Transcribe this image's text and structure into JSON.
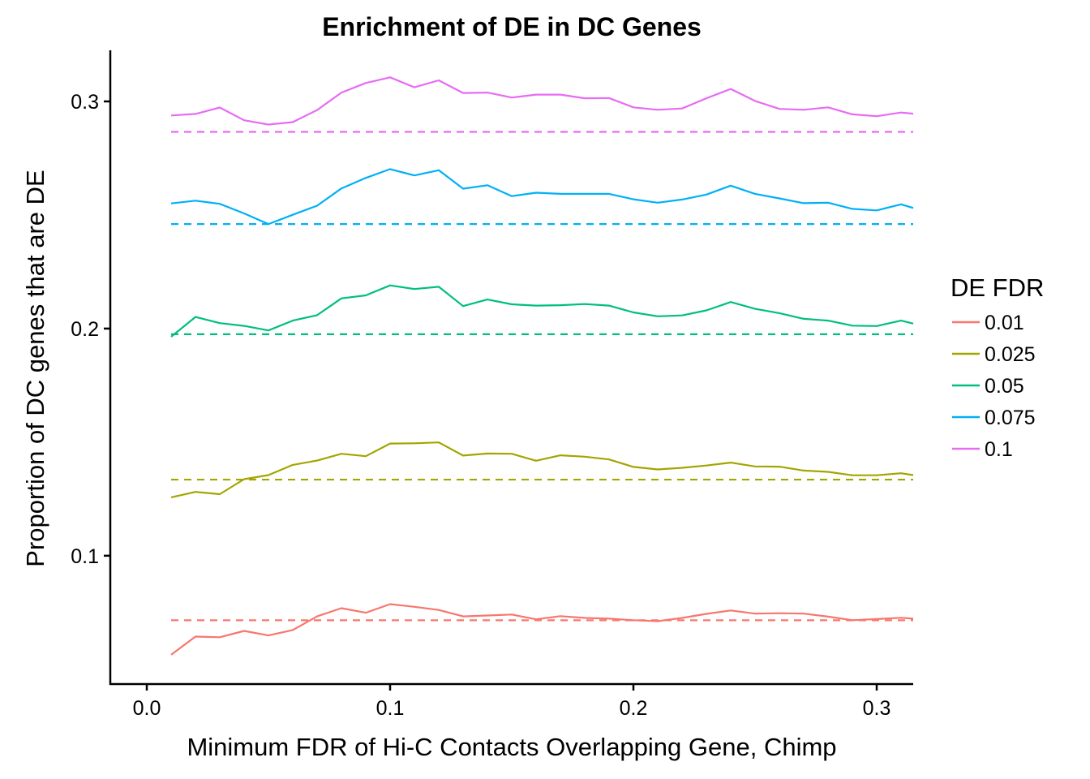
{
  "chart_data": {
    "type": "line",
    "title": "Enrichment of DE in DC Genes",
    "xlabel": "Minimum FDR of Hi-C Contacts Overlapping Gene, Chimp",
    "ylabel": "Proportion of DC genes that are DE",
    "xlim": [
      -0.015,
      0.315
    ],
    "ylim": [
      0.0435,
      0.3225
    ],
    "x_ticks": [
      0.0,
      0.1,
      0.2,
      0.3
    ],
    "x_tick_labels": [
      "0.0",
      "0.1",
      "0.2",
      "0.3"
    ],
    "y_ticks": [
      0.1,
      0.2,
      0.3
    ],
    "y_tick_labels": [
      "0.1",
      "0.2",
      "0.3"
    ],
    "grid": false,
    "legend": {
      "title": "DE FDR",
      "position": "right"
    },
    "x": [
      0.01,
      0.02,
      0.03,
      0.04,
      0.05,
      0.06,
      0.07,
      0.08,
      0.09,
      0.1,
      0.11,
      0.12,
      0.13,
      0.14,
      0.15,
      0.16,
      0.17,
      0.18,
      0.19,
      0.2,
      0.21,
      0.22,
      0.23,
      0.24,
      0.25,
      0.26,
      0.27,
      0.28,
      0.29,
      0.3,
      0.31,
      0.315
    ],
    "series": [
      {
        "name": "0.01",
        "color": "#F8766D",
        "baseline": 0.0716,
        "values": [
          0.0564,
          0.0644,
          0.0641,
          0.0669,
          0.0649,
          0.0673,
          0.0733,
          0.0769,
          0.0749,
          0.0787,
          0.0775,
          0.0761,
          0.0733,
          0.0737,
          0.0741,
          0.072,
          0.0734,
          0.0726,
          0.0723,
          0.0716,
          0.0712,
          0.0726,
          0.0744,
          0.0759,
          0.0745,
          0.0747,
          0.0745,
          0.0732,
          0.0716,
          0.0721,
          0.0727,
          0.0723
        ]
      },
      {
        "name": "0.025",
        "color": "#A3A500",
        "baseline": 0.1335,
        "values": [
          0.1257,
          0.1281,
          0.1271,
          0.1337,
          0.1355,
          0.14,
          0.1419,
          0.1449,
          0.1438,
          0.1494,
          0.1495,
          0.1499,
          0.1441,
          0.145,
          0.1449,
          0.1418,
          0.1442,
          0.1436,
          0.1424,
          0.1391,
          0.138,
          0.1387,
          0.1397,
          0.141,
          0.1393,
          0.1392,
          0.1375,
          0.1369,
          0.1354,
          0.1354,
          0.1363,
          0.1355
        ]
      },
      {
        "name": "0.05",
        "color": "#00BF7D",
        "baseline": 0.1975,
        "values": [
          0.1964,
          0.2051,
          0.2024,
          0.2012,
          0.1992,
          0.2035,
          0.2059,
          0.2133,
          0.2146,
          0.219,
          0.2174,
          0.2184,
          0.2099,
          0.2128,
          0.2107,
          0.2101,
          0.2103,
          0.2108,
          0.2101,
          0.2071,
          0.2054,
          0.2058,
          0.208,
          0.2117,
          0.2087,
          0.2068,
          0.2043,
          0.2035,
          0.2013,
          0.2011,
          0.2035,
          0.2022
        ]
      },
      {
        "name": "0.075",
        "color": "#00B0F6",
        "baseline": 0.246,
        "values": [
          0.2551,
          0.2563,
          0.2549,
          0.2507,
          0.246,
          0.2501,
          0.2541,
          0.2617,
          0.2663,
          0.2702,
          0.2674,
          0.2697,
          0.2616,
          0.2631,
          0.2583,
          0.2598,
          0.2593,
          0.2593,
          0.2593,
          0.2569,
          0.2554,
          0.2568,
          0.259,
          0.2629,
          0.2593,
          0.2573,
          0.2552,
          0.2554,
          0.2527,
          0.252,
          0.2547,
          0.2531
        ]
      },
      {
        "name": "0.1",
        "color": "#E76BF3",
        "baseline": 0.2866,
        "values": [
          0.2938,
          0.2945,
          0.2973,
          0.2917,
          0.2898,
          0.2909,
          0.2962,
          0.3039,
          0.3081,
          0.3106,
          0.3062,
          0.3093,
          0.3037,
          0.3039,
          0.3017,
          0.303,
          0.303,
          0.3014,
          0.3015,
          0.2974,
          0.2963,
          0.2969,
          0.3014,
          0.3055,
          0.3002,
          0.2967,
          0.2963,
          0.2974,
          0.2943,
          0.2935,
          0.2951,
          0.2946
        ]
      }
    ]
  }
}
